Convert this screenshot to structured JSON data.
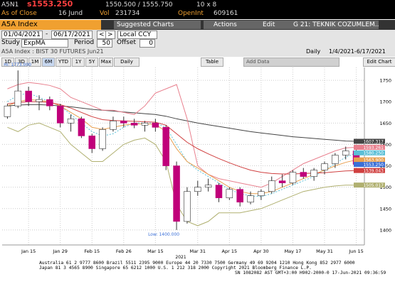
{
  "header": {
    "ticker": "A5N1",
    "last": "s1553.250",
    "bid_ask": "1550.500 / 1555.750",
    "size": "10 x 8",
    "as_of": "As of Close",
    "date": "16 Jund",
    "vol_label": "Vol",
    "vol": "231734",
    "oi_label": "OpenInt",
    "oi": "609161"
  },
  "toolbar": {
    "security": "A5A Index",
    "buttons": [
      "Suggested Charts",
      "Actions",
      "Edit"
    ],
    "page": "G 21: TEKNIK COZUMLEM..."
  },
  "range": {
    "start": "01/04/2021",
    "sep": "-",
    "end": "06/17/2021",
    "prev": "<",
    "next": ">",
    "currency": "Local CCY"
  },
  "study": {
    "label": "Study",
    "name": "ExpMA",
    "period_label": "Period",
    "period": "50",
    "offset_label": "Offset",
    "offset": "0"
  },
  "info": {
    "title": "A5A Index : BIST 30 FUTURES   Jun21",
    "freq": "Daily",
    "span": "1/4/2021-6/17/2021"
  },
  "period_buttons": [
    "1D",
    "3D",
    "1M",
    "6M",
    "YTD",
    "1Y",
    "5Y",
    "Max",
    "Daily"
  ],
  "tools": {
    "table": "Table",
    "add_data": "Add Data",
    "edit_chart": "Edit Chart"
  },
  "chart_data": {
    "type": "candlestick",
    "categories": [
      null,
      null,
      "Jan 15",
      null,
      null,
      "Jan 29",
      null,
      null,
      "Feb 15",
      null,
      null,
      "Feb 26",
      null,
      null,
      "Mar 15",
      null,
      null,
      null,
      "Mar 31",
      null,
      null,
      "Apr 15",
      null,
      null,
      "Apr 30",
      null,
      null,
      "May 17",
      null,
      null,
      "May 31",
      null,
      null,
      "Jun 15"
    ],
    "year_label": "2021",
    "open": [
      1665,
      1690,
      1725,
      1700,
      1705,
      1690,
      1650,
      1660,
      1620,
      1590,
      1635,
      1655,
      1650,
      1645,
      1650,
      1640,
      1550,
      1420,
      1490,
      1500,
      1505,
      1475,
      1495,
      1465,
      1480,
      1490,
      1515,
      1510,
      1535,
      1525,
      1540,
      1555,
      1575,
      1585
    ],
    "high": [
      1695,
      1773,
      1735,
      1715,
      1712,
      1695,
      1670,
      1665,
      1625,
      1640,
      1665,
      1665,
      1660,
      1655,
      1660,
      1645,
      1560,
      1500,
      1515,
      1520,
      1510,
      1500,
      1500,
      1490,
      1495,
      1525,
      1530,
      1540,
      1545,
      1545,
      1560,
      1580,
      1595,
      1590
    ],
    "low": [
      1660,
      1685,
      1690,
      1680,
      1680,
      1640,
      1630,
      1615,
      1580,
      1585,
      1630,
      1640,
      1638,
      1630,
      1630,
      1540,
      1400,
      1415,
      1480,
      1490,
      1465,
      1470,
      1455,
      1460,
      1470,
      1485,
      1500,
      1505,
      1520,
      1515,
      1530,
      1545,
      1565,
      1548
    ],
    "close": [
      1690,
      1725,
      1700,
      1705,
      1690,
      1650,
      1660,
      1620,
      1590,
      1635,
      1655,
      1650,
      1645,
      1650,
      1640,
      1550,
      1420,
      1490,
      1500,
      1505,
      1475,
      1495,
      1465,
      1480,
      1490,
      1515,
      1510,
      1535,
      1525,
      1540,
      1555,
      1575,
      1585,
      1553.25
    ],
    "close_label": "1553.250",
    "close_label_color": "#3a6fd8",
    "up_color": "#ffffff",
    "down_color": "#c0007a",
    "series": [
      {
        "color": "#444444",
        "dash": false,
        "last_label": "1607.317",
        "values": [
          1690,
          1692,
          1693,
          1693,
          1692,
          1690,
          1688,
          1685,
          1682,
          1680,
          1678,
          1676,
          1674,
          1672,
          1670,
          1666,
          1660,
          1655,
          1650,
          1646,
          1642,
          1638,
          1634,
          1630,
          1627,
          1624,
          1621,
          1618,
          1616,
          1614,
          1612,
          1610,
          1608,
          1607.317
        ]
      },
      {
        "color": "#e8808e",
        "dash": false,
        "last_label": "1593.261",
        "values": [
          1730,
          1740,
          1745,
          1742,
          1738,
          1730,
          1710,
          1700,
          1690,
          1680,
          1680,
          1675,
          1670,
          1690,
          1720,
          1730,
          1740,
          1660,
          1550,
          1530,
          1520,
          1515,
          1510,
          1505,
          1500,
          1510,
          1525,
          1540,
          1555,
          1565,
          1575,
          1585,
          1592,
          1593.261
        ]
      },
      {
        "color": "#5bbfd6",
        "dash": true,
        "last_label": "1580.250",
        "values": [
          1700,
          1715,
          1720,
          1710,
          1700,
          1690,
          1670,
          1650,
          1630,
          1620,
          1625,
          1640,
          1650,
          1650,
          1650,
          1640,
          1600,
          1560,
          1540,
          1525,
          1510,
          1495,
          1485,
          1480,
          1478,
          1485,
          1495,
          1505,
          1515,
          1525,
          1540,
          1555,
          1570,
          1580.25
        ]
      },
      {
        "color": "#e8a050",
        "dash": false,
        "last_label": "1563.900",
        "values": [
          1690,
          1700,
          1705,
          1703,
          1700,
          1690,
          1675,
          1660,
          1640,
          1635,
          1640,
          1645,
          1648,
          1648,
          1647,
          1630,
          1590,
          1560,
          1545,
          1530,
          1515,
          1500,
          1490,
          1485,
          1485,
          1490,
          1500,
          1510,
          1520,
          1530,
          1540,
          1550,
          1558,
          1563.9
        ]
      },
      {
        "color": "#d04040",
        "dash": false,
        "last_label": "1539.043",
        "values": [
          1695,
          1698,
          1700,
          1700,
          1698,
          1693,
          1685,
          1675,
          1665,
          1658,
          1656,
          1655,
          1654,
          1653,
          1652,
          1645,
          1625,
          1605,
          1590,
          1578,
          1567,
          1557,
          1548,
          1540,
          1535,
          1532,
          1531,
          1531,
          1532,
          1533,
          1534,
          1536,
          1538,
          1539.043
        ]
      },
      {
        "color": "#b0b070",
        "dash": false,
        "last_label": "1505.017",
        "values": [
          1640,
          1630,
          1645,
          1650,
          1640,
          1630,
          1600,
          1580,
          1560,
          1560,
          1580,
          1600,
          1610,
          1615,
          1600,
          1560,
          1460,
          1420,
          1410,
          1420,
          1440,
          1440,
          1440,
          1445,
          1450,
          1460,
          1470,
          1480,
          1490,
          1495,
          1500,
          1503,
          1505,
          1505.017
        ]
      }
    ],
    "hi_label": "Hi: 1773.000",
    "low_label": "Low: 1400.000",
    "ylim": [
      1365,
      1780
    ],
    "yticks": [
      1400,
      1450,
      1500,
      1550,
      1600,
      1650,
      1700,
      1750
    ],
    "grid": true
  },
  "footer": [
    "Australia 61 2 9777 8600 Brazil 5511 2395 9000 Europe 44 20 7330 7500 Germany 49 69 9204 1210 Hong Kong 852 2977 6000",
    "Japan 81 3 4565 8900       Singapore 65 6212 1000       U.S. 1 212 318 2000       Copyright 2021 Bloomberg Finance L.P.",
    "SN 1082082 AST  GMT+3:00 H902-2000-0 17-Jun-2021 09:36:59"
  ]
}
